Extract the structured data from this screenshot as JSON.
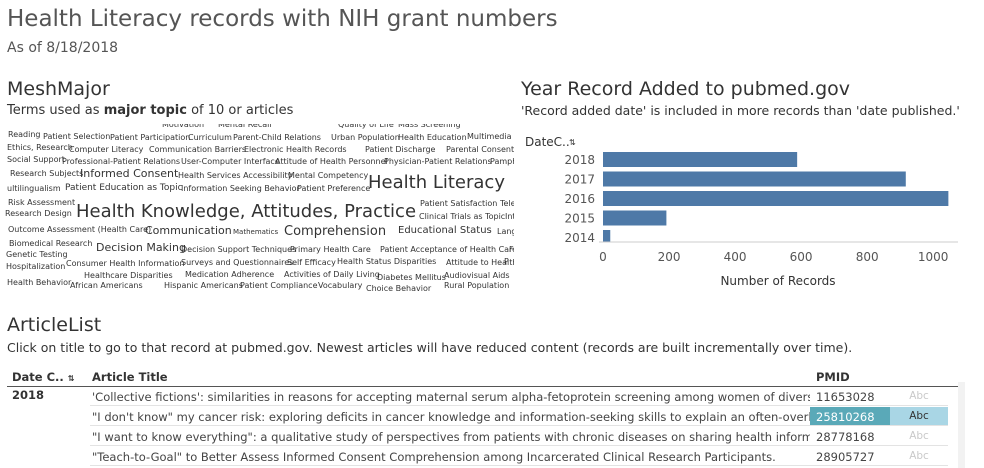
{
  "header": {
    "title": "Health Literacy records with NIH grant numbers",
    "subtitle": "As of 8/18/2018"
  },
  "mesh": {
    "title": "MeshMajor",
    "desc_prefix": "Terms used as ",
    "desc_bold": "major topic",
    "desc_suffix": " of 10 or articles",
    "words": [
      {
        "text": "Motivation",
        "size": 8
      },
      {
        "text": "Mental Recall",
        "size": 8
      },
      {
        "text": "Quality of Life",
        "size": 8
      },
      {
        "text": "Mass Screening",
        "size": 8
      },
      {
        "text": "Reading",
        "size": 8
      },
      {
        "text": "Patient Selection",
        "size": 8
      },
      {
        "text": "Patient Participation",
        "size": 8
      },
      {
        "text": "Curriculum",
        "size": 8
      },
      {
        "text": "Parent-Child Relations",
        "size": 8
      },
      {
        "text": "Urban Population",
        "size": 8
      },
      {
        "text": "Health Education",
        "size": 8
      },
      {
        "text": "Multimedia",
        "size": 8
      },
      {
        "text": "Ethics, Research",
        "size": 8
      },
      {
        "text": "Computer Literacy",
        "size": 8
      },
      {
        "text": "Communication Barriers",
        "size": 8
      },
      {
        "text": "Electronic Health Records",
        "size": 8
      },
      {
        "text": "Patient Discharge",
        "size": 8
      },
      {
        "text": "Parental Consent",
        "size": 8
      },
      {
        "text": "Social Support",
        "size": 8
      },
      {
        "text": "Professional-Patient Relations",
        "size": 8
      },
      {
        "text": "User-Computer Interface",
        "size": 8
      },
      {
        "text": "Attitude of Health Personnel",
        "size": 8
      },
      {
        "text": "Physician-Patient Relations",
        "size": 8
      },
      {
        "text": "Pamph",
        "size": 8
      },
      {
        "text": "Research Subjects",
        "size": 8
      },
      {
        "text": "Informed Consent",
        "size": 11
      },
      {
        "text": "Health Services Accessibility",
        "size": 8
      },
      {
        "text": "Mental Competency",
        "size": 8
      },
      {
        "text": "ultilingualism",
        "size": 8
      },
      {
        "text": "Patient Education as Topic",
        "size": 9
      },
      {
        "text": "Information Seeking Behavior",
        "size": 8
      },
      {
        "text": "Patient Preference",
        "size": 8
      },
      {
        "text": "Health Literacy",
        "size": 18
      },
      {
        "text": "Risk Assessment",
        "size": 8
      },
      {
        "text": "Patient Satisfaction",
        "size": 8
      },
      {
        "text": "Tele",
        "size": 8
      },
      {
        "text": "Research Design",
        "size": 8
      },
      {
        "text": "Health Knowledge, Attitudes, Practice",
        "size": 18
      },
      {
        "text": "Clinical Trials as Topic",
        "size": 8
      },
      {
        "text": "Int",
        "size": 8
      },
      {
        "text": "Outcome Assessment (Health Care)",
        "size": 8
      },
      {
        "text": "Communication",
        "size": 11
      },
      {
        "text": "Mathematics",
        "size": 7
      },
      {
        "text": "Comprehension",
        "size": 13
      },
      {
        "text": "Educational Status",
        "size": 10
      },
      {
        "text": "Lang",
        "size": 8
      },
      {
        "text": "Biomedical Research",
        "size": 8
      },
      {
        "text": "Decision Making",
        "size": 11
      },
      {
        "text": "Decision Support Techniques",
        "size": 8
      },
      {
        "text": "Primary Health Care",
        "size": 8
      },
      {
        "text": "Patient Acceptance of Health Care",
        "size": 8
      },
      {
        "text": "F",
        "size": 8
      },
      {
        "text": "Genetic Testing",
        "size": 8
      },
      {
        "text": "Consumer Health Information",
        "size": 8
      },
      {
        "text": "Surveys and Questionnaires",
        "size": 8
      },
      {
        "text": "Self Efficacy",
        "size": 8
      },
      {
        "text": "Health Status Disparities",
        "size": 8
      },
      {
        "text": "Attitude to Health",
        "size": 8
      },
      {
        "text": "P",
        "size": 8
      },
      {
        "text": "Hospitalization",
        "size": 8
      },
      {
        "text": "Healthcare Disparities",
        "size": 8
      },
      {
        "text": "Medication Adherence",
        "size": 8
      },
      {
        "text": "Activities of Daily Living",
        "size": 8
      },
      {
        "text": "Diabetes Mellitus",
        "size": 8
      },
      {
        "text": "Audiovisual Aids",
        "size": 8
      },
      {
        "text": "Health Behavior",
        "size": 8
      },
      {
        "text": "African Americans",
        "size": 8
      },
      {
        "text": "Hispanic Americans",
        "size": 8
      },
      {
        "text": "Patient Compliance",
        "size": 8
      },
      {
        "text": "Vocabulary",
        "size": 8
      },
      {
        "text": "Choice Behavior",
        "size": 8
      },
      {
        "text": "Rural Population",
        "size": 8
      }
    ]
  },
  "year_section": {
    "title": "Year Record Added to pubmed.gov",
    "desc": "'Record added date' is included in more records than 'date published.'"
  },
  "chart_data": {
    "type": "bar",
    "orientation": "horizontal",
    "dimension_label": "DateC..",
    "sort_icon": "sort-icon",
    "categories": [
      "2018",
      "2017",
      "2016",
      "2015",
      "2014"
    ],
    "values": [
      588,
      917,
      1046,
      192,
      22
    ],
    "xlabel": "Number of Records",
    "xticks": [
      0,
      200,
      400,
      600,
      800,
      1000
    ],
    "xlim": [
      0,
      1060
    ],
    "bar_color": "#4e79a7",
    "grid": false
  },
  "article_list": {
    "title": "ArticleList",
    "desc": "Click on title to go to that record at pubmed.gov. Newest articles will have reduced content (records are built incrementally over time).",
    "col_date": "Date C..",
    "col_title": "Article Title",
    "col_pmid": "PMID",
    "year": "2018",
    "rows": [
      {
        "title": "'Collective fictions': similarities in reasons for accepting maternal serum alpha-fetoprotein screening among women of divers..",
        "pmid": "11653028",
        "abc": "Abc",
        "highlighted": false
      },
      {
        "title": "\"I don't know\" my cancer risk: exploring deficits in cancer knowledge and information-seeking skills to explain an often-overlo..",
        "pmid": "25810268",
        "abc": "Abc",
        "highlighted": true
      },
      {
        "title": "\"I want to know everything\": a qualitative study of perspectives from patients with chronic diseases on sharing health inform..",
        "pmid": "28778168",
        "abc": "Abc",
        "highlighted": false
      },
      {
        "title": "\"Teach-to-Goal\" to Better Assess Informed Consent Comprehension among Incarcerated Clinical Research Participants.",
        "pmid": "28905727",
        "abc": "Abc",
        "highlighted": false
      }
    ]
  }
}
